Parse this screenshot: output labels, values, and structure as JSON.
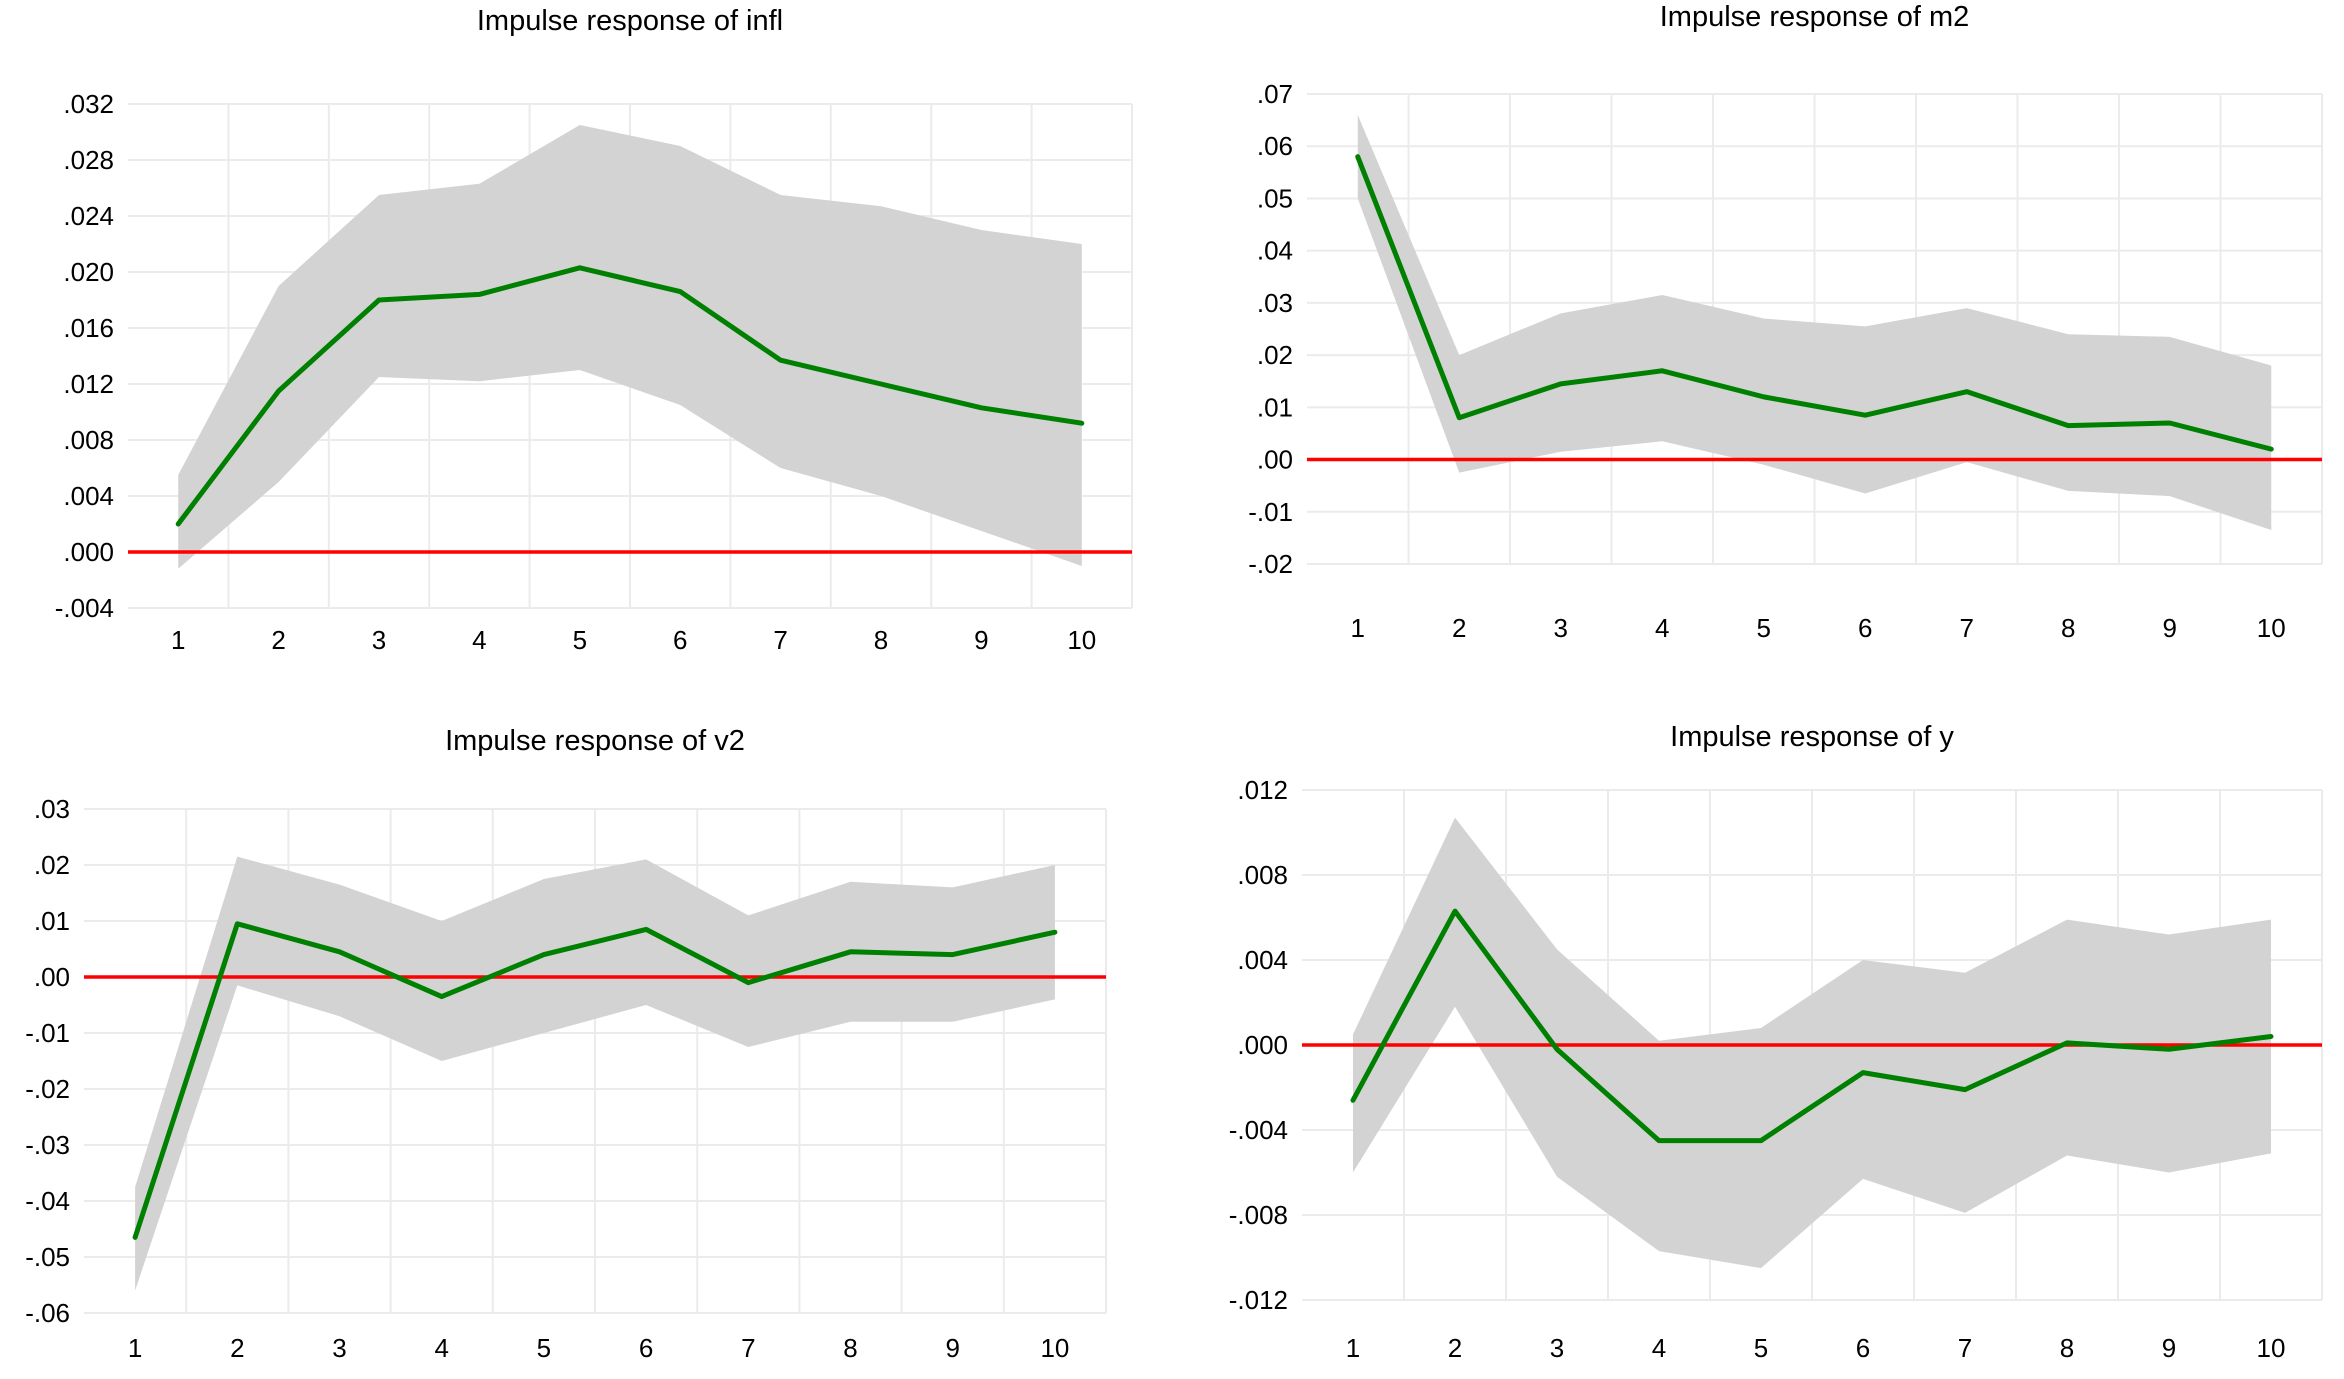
{
  "page": {
    "background": "#ffffff"
  },
  "colors": {
    "response_line": "#008000",
    "zero_line": "#ff0000",
    "confidence_band": "#d3d3d3",
    "gridline": "#ebebeb",
    "text": "#000000"
  },
  "chart_data": [
    {
      "type": "line",
      "title": "Impulse response of infl",
      "x": [
        1,
        2,
        3,
        4,
        5,
        6,
        7,
        8,
        9,
        10
      ],
      "x_labels": [
        "1",
        "2",
        "3",
        "4",
        "5",
        "6",
        "7",
        "8",
        "9",
        "10"
      ],
      "y_labels": [
        ".032",
        ".028",
        ".024",
        ".020",
        ".016",
        ".012",
        ".008",
        ".004",
        ".000",
        "-.004"
      ],
      "ylim": [
        -0.004,
        0.032
      ],
      "zero_line": 0,
      "grid": true,
      "legend": "none",
      "series": [
        {
          "name": "response",
          "values": [
            0.002,
            0.0115,
            0.018,
            0.0184,
            0.0203,
            0.0186,
            0.0137,
            0.012,
            0.0103,
            0.0092
          ]
        },
        {
          "name": "upper_band",
          "values": [
            0.0055,
            0.019,
            0.0255,
            0.0263,
            0.0305,
            0.029,
            0.0255,
            0.0247,
            0.023,
            0.022
          ]
        },
        {
          "name": "lower_band",
          "values": [
            -0.0012,
            0.005,
            0.0125,
            0.0122,
            0.013,
            0.0105,
            0.006,
            0.004,
            0.0015,
            -0.001
          ]
        }
      ]
    },
    {
      "type": "line",
      "title": "Impulse response of m2",
      "x": [
        1,
        2,
        3,
        4,
        5,
        6,
        7,
        8,
        9,
        10
      ],
      "x_labels": [
        "1",
        "2",
        "3",
        "4",
        "5",
        "6",
        "7",
        "8",
        "9",
        "10"
      ],
      "y_labels": [
        ".07",
        ".06",
        ".05",
        ".04",
        ".03",
        ".02",
        ".01",
        ".00",
        "-.01",
        "-.02"
      ],
      "ylim": [
        -0.02,
        0.07
      ],
      "zero_line": 0,
      "grid": true,
      "legend": "none",
      "series": [
        {
          "name": "response",
          "values": [
            0.058,
            0.008,
            0.0145,
            0.017,
            0.012,
            0.0085,
            0.013,
            0.0065,
            0.007,
            0.002
          ]
        },
        {
          "name": "upper_band",
          "values": [
            0.066,
            0.02,
            0.028,
            0.0315,
            0.027,
            0.0255,
            0.029,
            0.024,
            0.0235,
            0.018
          ]
        },
        {
          "name": "lower_band",
          "values": [
            0.05,
            -0.0025,
            0.0015,
            0.0035,
            -0.001,
            -0.0065,
            -0.0005,
            -0.006,
            -0.007,
            -0.0135
          ]
        }
      ]
    },
    {
      "type": "line",
      "title": "Impulse response of v2",
      "x": [
        1,
        2,
        3,
        4,
        5,
        6,
        7,
        8,
        9,
        10
      ],
      "x_labels": [
        "1",
        "2",
        "3",
        "4",
        "5",
        "6",
        "7",
        "8",
        "9",
        "10"
      ],
      "y_labels": [
        ".03",
        ".02",
        ".01",
        ".00",
        "-.01",
        "-.02",
        "-.03",
        "-.04",
        "-.05",
        "-.06"
      ],
      "ylim": [
        -0.06,
        0.03
      ],
      "zero_line": 0,
      "grid": true,
      "legend": "none",
      "series": [
        {
          "name": "response",
          "values": [
            -0.0465,
            0.0095,
            0.0045,
            -0.0035,
            0.004,
            0.0085,
            -0.001,
            0.0045,
            0.004,
            0.008
          ]
        },
        {
          "name": "upper_band",
          "values": [
            -0.0375,
            0.0215,
            0.0165,
            0.01,
            0.0175,
            0.021,
            0.011,
            0.017,
            0.016,
            0.02
          ]
        },
        {
          "name": "lower_band",
          "values": [
            -0.056,
            -0.0015,
            -0.007,
            -0.015,
            -0.01,
            -0.005,
            -0.0125,
            -0.008,
            -0.008,
            -0.004
          ]
        }
      ]
    },
    {
      "type": "line",
      "title": "Impulse response of y",
      "x": [
        1,
        2,
        3,
        4,
        5,
        6,
        7,
        8,
        9,
        10
      ],
      "x_labels": [
        "1",
        "2",
        "3",
        "4",
        "5",
        "6",
        "7",
        "8",
        "9",
        "10"
      ],
      "y_labels": [
        ".012",
        ".008",
        ".004",
        ".000",
        "-.004",
        "-.008",
        "-.012"
      ],
      "ylim": [
        -0.012,
        0.012
      ],
      "zero_line": 0,
      "grid": true,
      "legend": "none",
      "series": [
        {
          "name": "response",
          "values": [
            -0.0026,
            0.0063,
            -0.0002,
            -0.0045,
            -0.0045,
            -0.0013,
            -0.0021,
            0.0001,
            -0.0002,
            0.0004
          ]
        },
        {
          "name": "upper_band",
          "values": [
            0.0005,
            0.0107,
            0.0045,
            0.0002,
            0.0008,
            0.004,
            0.0034,
            0.0059,
            0.0052,
            0.0059
          ]
        },
        {
          "name": "lower_band",
          "values": [
            -0.006,
            0.0018,
            -0.0062,
            -0.0097,
            -0.0105,
            -0.0063,
            -0.0079,
            -0.0052,
            -0.006,
            -0.0051
          ]
        }
      ]
    }
  ]
}
